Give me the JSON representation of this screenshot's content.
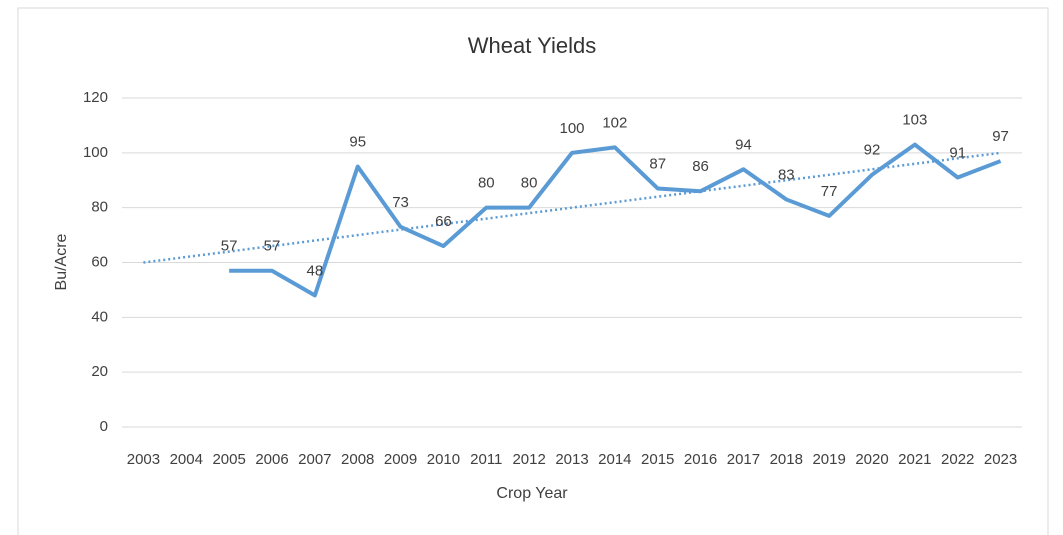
{
  "chart_data": {
    "type": "line",
    "title": "Wheat Yields",
    "x_label": "Crop Year",
    "y_label": "Bu/Acre",
    "categories": [
      "2003",
      "2004",
      "2005",
      "2006",
      "2007",
      "2008",
      "2009",
      "2010",
      "2011",
      "2012",
      "2013",
      "2014",
      "2015",
      "2016",
      "2017",
      "2018",
      "2019",
      "2020",
      "2021",
      "2022",
      "2023"
    ],
    "series": [
      {
        "name": "Wheat Yield",
        "color": "#5b9bd5",
        "values": [
          null,
          null,
          57,
          57,
          48,
          95,
          73,
          66,
          80,
          80,
          100,
          102,
          87,
          86,
          94,
          83,
          77,
          92,
          103,
          91,
          97
        ]
      }
    ],
    "trendline": {
      "from": 60,
      "to": 100,
      "color": "#5b9bd5",
      "dotted": true
    },
    "ylim": [
      0,
      120
    ],
    "yticks": [
      0,
      20,
      40,
      60,
      80,
      100,
      120
    ],
    "grid": true
  }
}
